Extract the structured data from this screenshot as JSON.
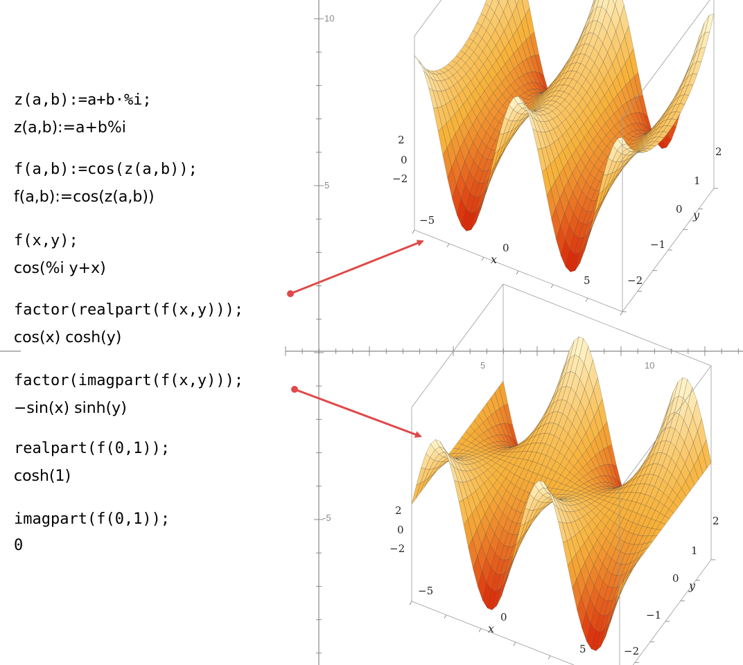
{
  "session": {
    "lines": [
      {
        "kind": "input",
        "text": "z(a,b):=a+b·%i;"
      },
      {
        "kind": "output",
        "text": "z(a,b):=a+b%i"
      },
      {
        "kind": "input",
        "text": "f(a,b):=cos(z(a,b));"
      },
      {
        "kind": "output",
        "text": "f(a,b):=cos(z(a,b))"
      },
      {
        "kind": "input",
        "text": "f(x,y);"
      },
      {
        "kind": "output",
        "text": "cos(%i y+x)"
      },
      {
        "kind": "input",
        "text": "factor(realpart(f(x,y)));"
      },
      {
        "kind": "output",
        "text": "cos(x) cosh(y)"
      },
      {
        "kind": "input",
        "text": "factor(imagpart(f(x,y)));"
      },
      {
        "kind": "output",
        "text": "−sin(x) sinh(y)"
      },
      {
        "kind": "input",
        "text": "realpart(f(0,1));"
      },
      {
        "kind": "output",
        "text": "cosh(1)"
      },
      {
        "kind": "input",
        "text": "imagpart(f(0,1));"
      },
      {
        "kind": "output",
        "text": "0"
      }
    ]
  },
  "background_axes": {
    "x_ticks": [
      "5",
      "10"
    ],
    "y_ticks": [
      "10",
      "5",
      "-5"
    ]
  },
  "plots": [
    {
      "name": "real-part-surface",
      "function": "cos(x) cosh(y)",
      "x_label": "x",
      "y_label": "y",
      "x_ticks": [
        "−5",
        "0",
        "5"
      ],
      "y_ticks": [
        "2",
        "1",
        "0",
        "−1",
        "−2"
      ],
      "z_ticks": [
        "2",
        "0",
        "−2"
      ]
    },
    {
      "name": "imag-part-surface",
      "function": "-sin(x) sinh(y)",
      "x_label": "x",
      "y_label": "y",
      "x_ticks": [
        "−5",
        "0",
        "5"
      ],
      "y_ticks": [
        "2",
        "1",
        "0",
        "−1",
        "−2"
      ],
      "z_ticks": [
        "2",
        "0",
        "−2"
      ]
    }
  ],
  "colors": {
    "arrow": "#e04848",
    "surface_low": "#d81e05",
    "surface_mid": "#f7b23a",
    "surface_high": "#fffbd9",
    "axis": "#888888"
  }
}
